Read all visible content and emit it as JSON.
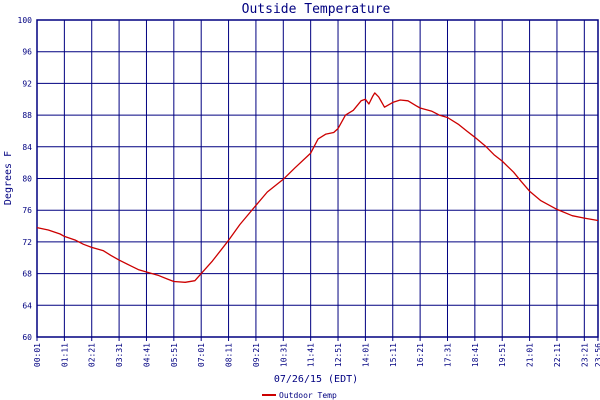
{
  "chart_data": {
    "type": "line",
    "title": "Outside Temperature",
    "ylabel": "Degrees F",
    "xlabel": "07/26/15 (EDT)",
    "ylim": [
      60,
      100
    ],
    "y_ticks": [
      60,
      64,
      68,
      72,
      76,
      80,
      84,
      88,
      92,
      96,
      100
    ],
    "x_tick_labels": [
      "00:01",
      "01:11",
      "02:21",
      "03:31",
      "04:41",
      "05:51",
      "07:01",
      "08:11",
      "09:21",
      "10:31",
      "11:41",
      "12:51",
      "14:01",
      "15:11",
      "16:21",
      "17:31",
      "18:41",
      "19:51",
      "21:01",
      "22:11",
      "23:21",
      "23:56"
    ],
    "grid": true,
    "legend": "bottom-left",
    "colors": {
      "series": "#cc0000",
      "grid": "#000080",
      "text": "#000080",
      "background": "#ffffff"
    },
    "series": [
      {
        "name": "Outdoor Temp",
        "points": [
          [
            "00:01",
            73.8
          ],
          [
            "00:30",
            73.5
          ],
          [
            "01:00",
            73.0
          ],
          [
            "01:11",
            72.7
          ],
          [
            "01:40",
            72.2
          ],
          [
            "02:00",
            71.7
          ],
          [
            "02:21",
            71.3
          ],
          [
            "02:50",
            70.9
          ],
          [
            "03:10",
            70.3
          ],
          [
            "03:31",
            69.7
          ],
          [
            "04:00",
            69.0
          ],
          [
            "04:20",
            68.5
          ],
          [
            "04:41",
            68.2
          ],
          [
            "05:10",
            67.8
          ],
          [
            "05:35",
            67.3
          ],
          [
            "05:51",
            67.0
          ],
          [
            "06:20",
            66.9
          ],
          [
            "06:45",
            67.1
          ],
          [
            "07:01",
            68.0
          ],
          [
            "07:30",
            69.6
          ],
          [
            "08:11",
            72.2
          ],
          [
            "08:40",
            74.2
          ],
          [
            "09:21",
            76.6
          ],
          [
            "09:50",
            78.3
          ],
          [
            "10:31",
            79.9
          ],
          [
            "11:00",
            81.3
          ],
          [
            "11:41",
            83.2
          ],
          [
            "12:00",
            85.0
          ],
          [
            "12:20",
            85.6
          ],
          [
            "12:40",
            85.8
          ],
          [
            "12:51",
            86.3
          ],
          [
            "13:10",
            88.0
          ],
          [
            "13:30",
            88.6
          ],
          [
            "13:50",
            89.8
          ],
          [
            "14:01",
            90.0
          ],
          [
            "14:10",
            89.4
          ],
          [
            "14:20",
            90.4
          ],
          [
            "14:25",
            90.8
          ],
          [
            "14:35",
            90.3
          ],
          [
            "14:50",
            89.0
          ],
          [
            "15:11",
            89.6
          ],
          [
            "15:30",
            89.9
          ],
          [
            "15:50",
            89.8
          ],
          [
            "16:10",
            89.2
          ],
          [
            "16:21",
            88.9
          ],
          [
            "16:50",
            88.5
          ],
          [
            "17:10",
            88.0
          ],
          [
            "17:31",
            87.7
          ],
          [
            "18:00",
            86.8
          ],
          [
            "18:20",
            86.0
          ],
          [
            "18:41",
            85.2
          ],
          [
            "19:10",
            84.0
          ],
          [
            "19:30",
            83.0
          ],
          [
            "19:51",
            82.2
          ],
          [
            "20:20",
            80.8
          ],
          [
            "20:40",
            79.6
          ],
          [
            "21:01",
            78.4
          ],
          [
            "21:30",
            77.2
          ],
          [
            "22:11",
            76.1
          ],
          [
            "22:50",
            75.3
          ],
          [
            "23:21",
            75.0
          ],
          [
            "23:56",
            74.7
          ]
        ]
      }
    ]
  }
}
